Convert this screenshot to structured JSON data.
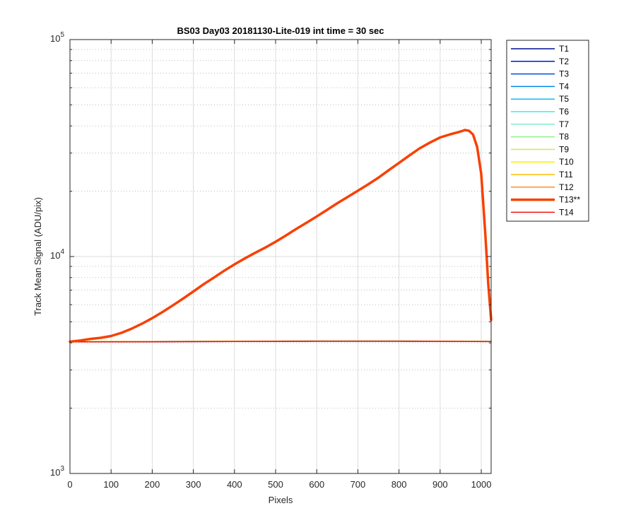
{
  "chart_data": {
    "type": "line",
    "title": "BS03 Day03 20181130-Lite-019 int time = 30 sec",
    "xlabel": "Pixels",
    "ylabel": "Track Mean Signal (ADU/pix)",
    "xlim": [
      0,
      1024
    ],
    "ylim": [
      1000,
      100000
    ],
    "yscale": "log",
    "grid": true,
    "legend_position": "outside-top-right",
    "x_ticks": [
      "0",
      "100",
      "200",
      "300",
      "400",
      "500",
      "600",
      "700",
      "800",
      "900",
      "1000"
    ],
    "y_ticks": [
      {
        "base": "10",
        "exp": "3"
      },
      {
        "base": "10",
        "exp": "4"
      },
      {
        "base": "10",
        "exp": "5"
      }
    ],
    "series": [
      {
        "name": "T1",
        "color": "#000f8f",
        "width": 1.5,
        "x": [
          0,
          200,
          400,
          600,
          800,
          1024
        ],
        "y": [
          4050,
          4055,
          4065,
          4075,
          4075,
          4060
        ]
      },
      {
        "name": "T2",
        "color": "#0018c8",
        "width": 1.5,
        "x": [
          0,
          200,
          400,
          600,
          800,
          1024
        ],
        "y": [
          4040,
          4050,
          4060,
          4070,
          4070,
          4055
        ]
      },
      {
        "name": "T3",
        "color": "#0050d8",
        "width": 1.5,
        "x": [
          0,
          200,
          400,
          600,
          800,
          1024
        ],
        "y": [
          4045,
          4052,
          4062,
          4072,
          4072,
          4058
        ]
      },
      {
        "name": "T4",
        "color": "#0088e8",
        "width": 1.5,
        "x": [
          0,
          200,
          400,
          600,
          800,
          1024
        ],
        "y": [
          4048,
          4055,
          4065,
          4075,
          4075,
          4060
        ]
      },
      {
        "name": "T5",
        "color": "#18b8f0",
        "width": 1.5,
        "x": [
          0,
          200,
          400,
          600,
          800,
          1024
        ],
        "y": [
          4050,
          4058,
          4068,
          4078,
          4078,
          4062
        ]
      },
      {
        "name": "T6",
        "color": "#40e8e8",
        "width": 1.5,
        "x": [
          0,
          200,
          400,
          600,
          800,
          1024
        ],
        "y": [
          4052,
          4060,
          4070,
          4080,
          4080,
          4064
        ]
      },
      {
        "name": "T7",
        "color": "#80f0c8",
        "width": 1.5,
        "x": [
          0,
          200,
          400,
          600,
          800,
          1024
        ],
        "y": [
          4050,
          4058,
          4068,
          4078,
          4078,
          4062
        ]
      },
      {
        "name": "T8",
        "color": "#90f090",
        "width": 1.5,
        "x": [
          0,
          200,
          400,
          600,
          800,
          1024
        ],
        "y": [
          4048,
          4056,
          4066,
          4076,
          4076,
          4060
        ]
      },
      {
        "name": "T9",
        "color": "#c8f050",
        "width": 1.5,
        "x": [
          0,
          200,
          400,
          600,
          800,
          1024
        ],
        "y": [
          4046,
          4055,
          4065,
          4074,
          4074,
          4058
        ]
      },
      {
        "name": "T10",
        "color": "#f8f000",
        "width": 1.5,
        "x": [
          0,
          200,
          400,
          600,
          800,
          1024
        ],
        "y": [
          4050,
          4058,
          4068,
          4078,
          4078,
          4062
        ]
      },
      {
        "name": "T11",
        "color": "#f8c000",
        "width": 1.5,
        "x": [
          0,
          200,
          400,
          600,
          800,
          1024
        ],
        "y": [
          4048,
          4056,
          4066,
          4076,
          4076,
          4060
        ]
      },
      {
        "name": "T12",
        "color": "#f89020",
        "width": 1.5,
        "x": [
          0,
          200,
          400,
          600,
          800,
          1024
        ],
        "y": [
          4045,
          4054,
          4064,
          4074,
          4074,
          4058
        ]
      },
      {
        "name": "T13**",
        "color": "#f84000",
        "width": 3.5,
        "x": [
          0,
          25,
          50,
          75,
          100,
          125,
          150,
          175,
          200,
          225,
          250,
          275,
          300,
          325,
          350,
          375,
          400,
          425,
          450,
          475,
          500,
          525,
          550,
          575,
          600,
          625,
          650,
          675,
          700,
          725,
          750,
          775,
          800,
          825,
          850,
          875,
          900,
          925,
          950,
          960,
          970,
          980,
          990,
          1000,
          1010,
          1017,
          1024
        ],
        "y": [
          4050,
          4100,
          4170,
          4220,
          4300,
          4450,
          4650,
          4900,
          5200,
          5550,
          5950,
          6400,
          6900,
          7450,
          8000,
          8600,
          9200,
          9800,
          10400,
          11000,
          11700,
          12500,
          13400,
          14300,
          15300,
          16400,
          17600,
          18800,
          20100,
          21500,
          23100,
          25000,
          27000,
          29200,
          31500,
          33500,
          35400,
          36600,
          37700,
          38300,
          38000,
          36500,
          32000,
          24000,
          12500,
          7500,
          5100
        ]
      },
      {
        "name": "T14",
        "color": "#f01010",
        "width": 1.5,
        "x": [
          0,
          200,
          400,
          600,
          800,
          1024
        ],
        "y": [
          4040,
          4048,
          4058,
          4068,
          4068,
          4052
        ]
      }
    ]
  }
}
